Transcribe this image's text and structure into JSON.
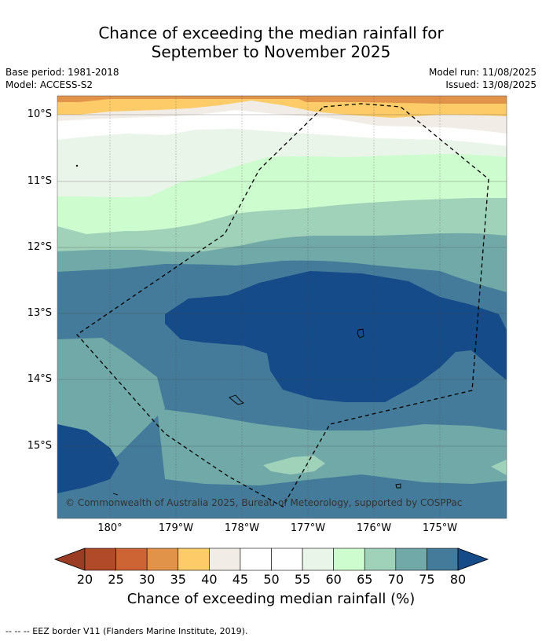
{
  "title_line1": "Chance of exceeding the median rainfall for",
  "title_line2": "September to November 2025",
  "base_period": "Base period: 1981-2018",
  "model": "Model: ACCESS-S2",
  "model_run": "Model run: 11/08/2025",
  "issued": "Issued: 13/08/2025",
  "lat_labels": [
    "10°S",
    "11°S",
    "12°S",
    "13°S",
    "14°S",
    "15°S"
  ],
  "lon_labels": [
    "180°",
    "179°W",
    "178°W",
    "177°W",
    "176°W",
    "175°W"
  ],
  "copyright": "© Commonwealth of Australia 2025, Bureau of Meteorology, supported by COSPPac",
  "colorbar": {
    "ticks": [
      "20",
      "25",
      "30",
      "35",
      "40",
      "45",
      "50",
      "55",
      "60",
      "65",
      "70",
      "75",
      "80"
    ],
    "colors": [
      "#b04a28",
      "#cd6433",
      "#e19349",
      "#fdcb67",
      "#f1ece6",
      "#ffffff",
      "#ffffff",
      "#eaf5e9",
      "#cdfcce",
      "#9fd2b9",
      "#71a9a8",
      "#457b9a"
    ],
    "under_color": "#9a3d24",
    "over_color": "#144b88",
    "label": "Chance of exceeding median rainfall (%)"
  },
  "footer": "--  --  -- EEZ border V11 (Flanders Marine Institute, 2019)."
}
